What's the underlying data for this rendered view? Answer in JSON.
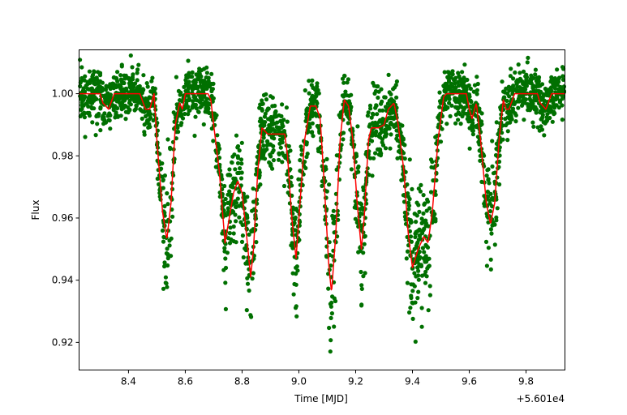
{
  "chart_data": {
    "type": "scatter",
    "title": "",
    "xlabel": "Time [MJD]",
    "ylabel": "Flux",
    "x_offset_label": "+5.601e4",
    "xlim": [
      8.226,
      9.937
    ],
    "ylim": [
      0.9111,
      1.0141
    ],
    "xticks": [
      8.4,
      8.6,
      8.8,
      9.0,
      9.2,
      9.4,
      9.6,
      9.8
    ],
    "xtick_labels": [
      "8.4",
      "8.6",
      "8.8",
      "9.0",
      "9.2",
      "9.4",
      "9.6",
      "9.8"
    ],
    "yticks": [
      0.92,
      0.94,
      0.96,
      0.98,
      1.0
    ],
    "ytick_labels": [
      "0.92",
      "0.94",
      "0.96",
      "0.98",
      "1.00"
    ],
    "grid": false,
    "series": [
      {
        "name": "observed flux",
        "kind": "scatter",
        "color": "#007000",
        "approx_points": 2600,
        "noise_sigma": 0.004
      },
      {
        "name": "model",
        "kind": "line",
        "color": "#ff0000",
        "x": [
          8.226,
          8.3,
          8.31,
          8.33,
          8.35,
          8.37,
          8.44,
          8.46,
          8.475,
          8.49,
          8.5,
          8.52,
          8.535,
          8.55,
          8.565,
          8.58,
          8.59,
          8.6,
          8.68,
          8.69,
          8.7,
          8.72,
          8.74,
          8.755,
          8.77,
          8.785,
          8.8,
          8.815,
          8.83,
          8.84,
          8.855,
          8.87,
          8.89,
          8.95,
          8.96,
          8.975,
          8.99,
          9.0,
          9.02,
          9.04,
          9.06,
          9.075,
          9.09,
          9.105,
          9.115,
          9.13,
          9.145,
          9.16,
          9.175,
          9.19,
          9.205,
          9.22,
          9.23,
          9.245,
          9.255,
          9.28,
          9.3,
          9.315,
          9.335,
          9.35,
          9.37,
          9.385,
          9.4,
          9.42,
          9.44,
          9.455,
          9.47,
          9.49,
          9.51,
          9.52,
          9.59,
          9.6,
          9.61,
          9.625,
          9.64,
          9.66,
          9.675,
          9.69,
          9.705,
          9.72,
          9.73,
          9.74,
          9.76,
          9.84,
          9.85,
          9.87,
          9.89,
          9.937
        ],
        "y": [
          1.0,
          1.0,
          0.997,
          0.995,
          1.0,
          1.0,
          1.0,
          0.995,
          0.995,
          1.0,
          0.985,
          0.962,
          0.953,
          0.965,
          0.99,
          0.997,
          0.995,
          1.0,
          1.0,
          0.998,
          0.99,
          0.975,
          0.952,
          0.96,
          0.968,
          0.972,
          0.968,
          0.955,
          0.941,
          0.95,
          0.975,
          0.989,
          0.987,
          0.987,
          0.98,
          0.96,
          0.947,
          0.96,
          0.985,
          0.996,
          0.996,
          0.992,
          0.97,
          0.945,
          0.936,
          0.955,
          0.985,
          0.998,
          0.996,
          0.985,
          0.965,
          0.95,
          0.96,
          0.985,
          0.989,
          0.989,
          0.99,
          0.995,
          0.997,
          0.99,
          0.975,
          0.955,
          0.944,
          0.95,
          0.954,
          0.952,
          0.962,
          0.985,
          0.999,
          1.0,
          1.0,
          0.995,
          0.992,
          0.997,
          0.985,
          0.965,
          0.958,
          0.965,
          0.985,
          0.998,
          0.995,
          0.995,
          1.0,
          1.0,
          0.997,
          0.995,
          1.0,
          1.0
        ]
      }
    ]
  }
}
